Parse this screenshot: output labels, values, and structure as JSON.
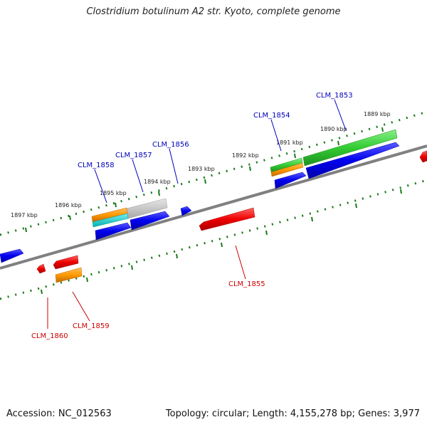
{
  "title": "Clostridium botulinum A2 str. Kyoto, complete genome",
  "footer": {
    "accession": "Accession: NC_012563",
    "stats": "Topology: circular; Length: 4,155,278 bp; Genes: 3,977"
  },
  "ruler_labels": [
    "1889 kbp",
    "1890 kbp",
    "1891 kbp",
    "1892 kbp",
    "1893 kbp",
    "1894 kbp",
    "1895 kbp",
    "1896 kbp",
    "1897 kbp"
  ],
  "genes_top": [
    "CLM_1853",
    "CLM_1854",
    "CLM_1856",
    "CLM_1857",
    "CLM_1858"
  ],
  "genes_bottom": [
    "CLM_1855",
    "CLM_1859",
    "CLM_1860"
  ],
  "colors": {
    "forward": "#0000ee",
    "reverse": "#ee0000",
    "cds_green": "#33cc33",
    "cds_orange": "#ff9900",
    "cds_cyan": "#00cccc",
    "cds_gray": "#bbbbbb",
    "backbone": "#808080",
    "ruler": "#1a7a1a"
  }
}
